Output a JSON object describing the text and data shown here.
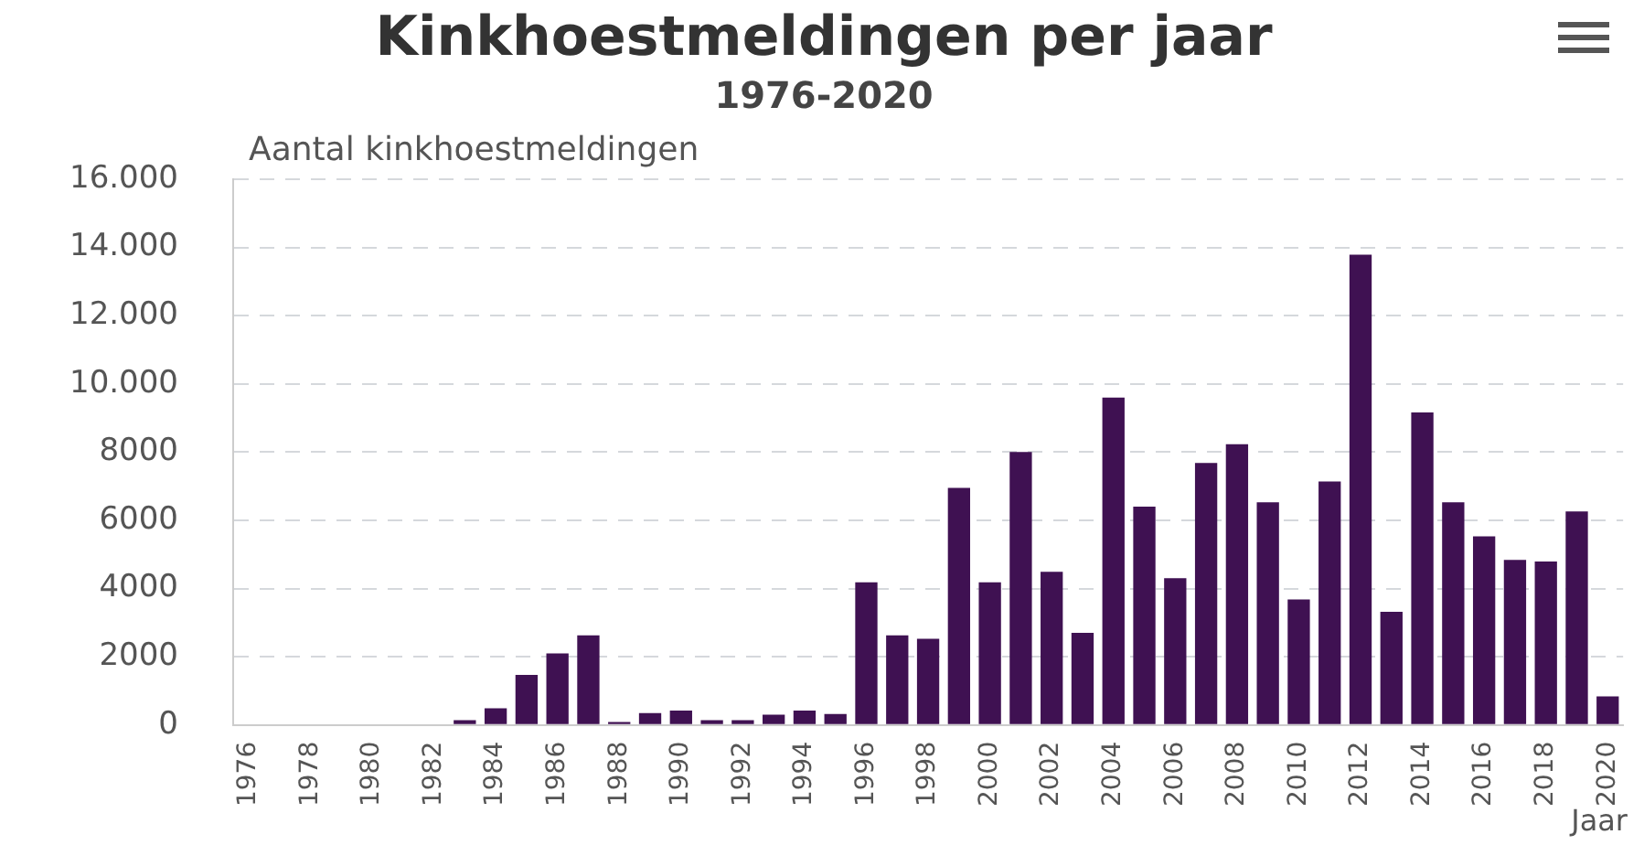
{
  "chart_data": {
    "type": "bar",
    "title": "Kinkhoestmeldingen per jaar",
    "subtitle": "1976-2020",
    "ylabel": "Aantal kinkhoestmeldingen",
    "xlabel": "Jaar",
    "categories": [
      "1976",
      null,
      "1978",
      null,
      "1980",
      null,
      "1982",
      null,
      "1984",
      null,
      "1986",
      null,
      "1988",
      null,
      "1990",
      null,
      "1992",
      null,
      "1994",
      null,
      "1996",
      null,
      "1998",
      null,
      "2000",
      null,
      "2002",
      null,
      "2004",
      null,
      "2006",
      null,
      "2008",
      null,
      "2010",
      null,
      "2012",
      null,
      "2014",
      null,
      "2016",
      null,
      "2018",
      null,
      "2020"
    ],
    "values": [
      0,
      0,
      0,
      0,
      0,
      0,
      0,
      140,
      490,
      1470,
      2100,
      2630,
      90,
      350,
      420,
      140,
      140,
      300,
      420,
      320,
      4180,
      2630,
      2530,
      6950,
      4180,
      8000,
      4490,
      2700,
      9600,
      6400,
      4300,
      7680,
      8230,
      6530,
      3680,
      7140,
      13790,
      3320,
      9160,
      6530,
      5530,
      4840,
      4790,
      6260,
      840
    ],
    "color": "#3f1152",
    "ylim": [
      0,
      16000
    ],
    "yticks": [
      0,
      2000,
      4000,
      6000,
      8000,
      {
        "value": 10000,
        "label": "10.000"
      },
      {
        "value": 12000,
        "label": "12.000"
      },
      {
        "value": 14000,
        "label": "14.000"
      },
      {
        "value": 16000,
        "label": "16.000"
      }
    ],
    "grid": "y"
  }
}
